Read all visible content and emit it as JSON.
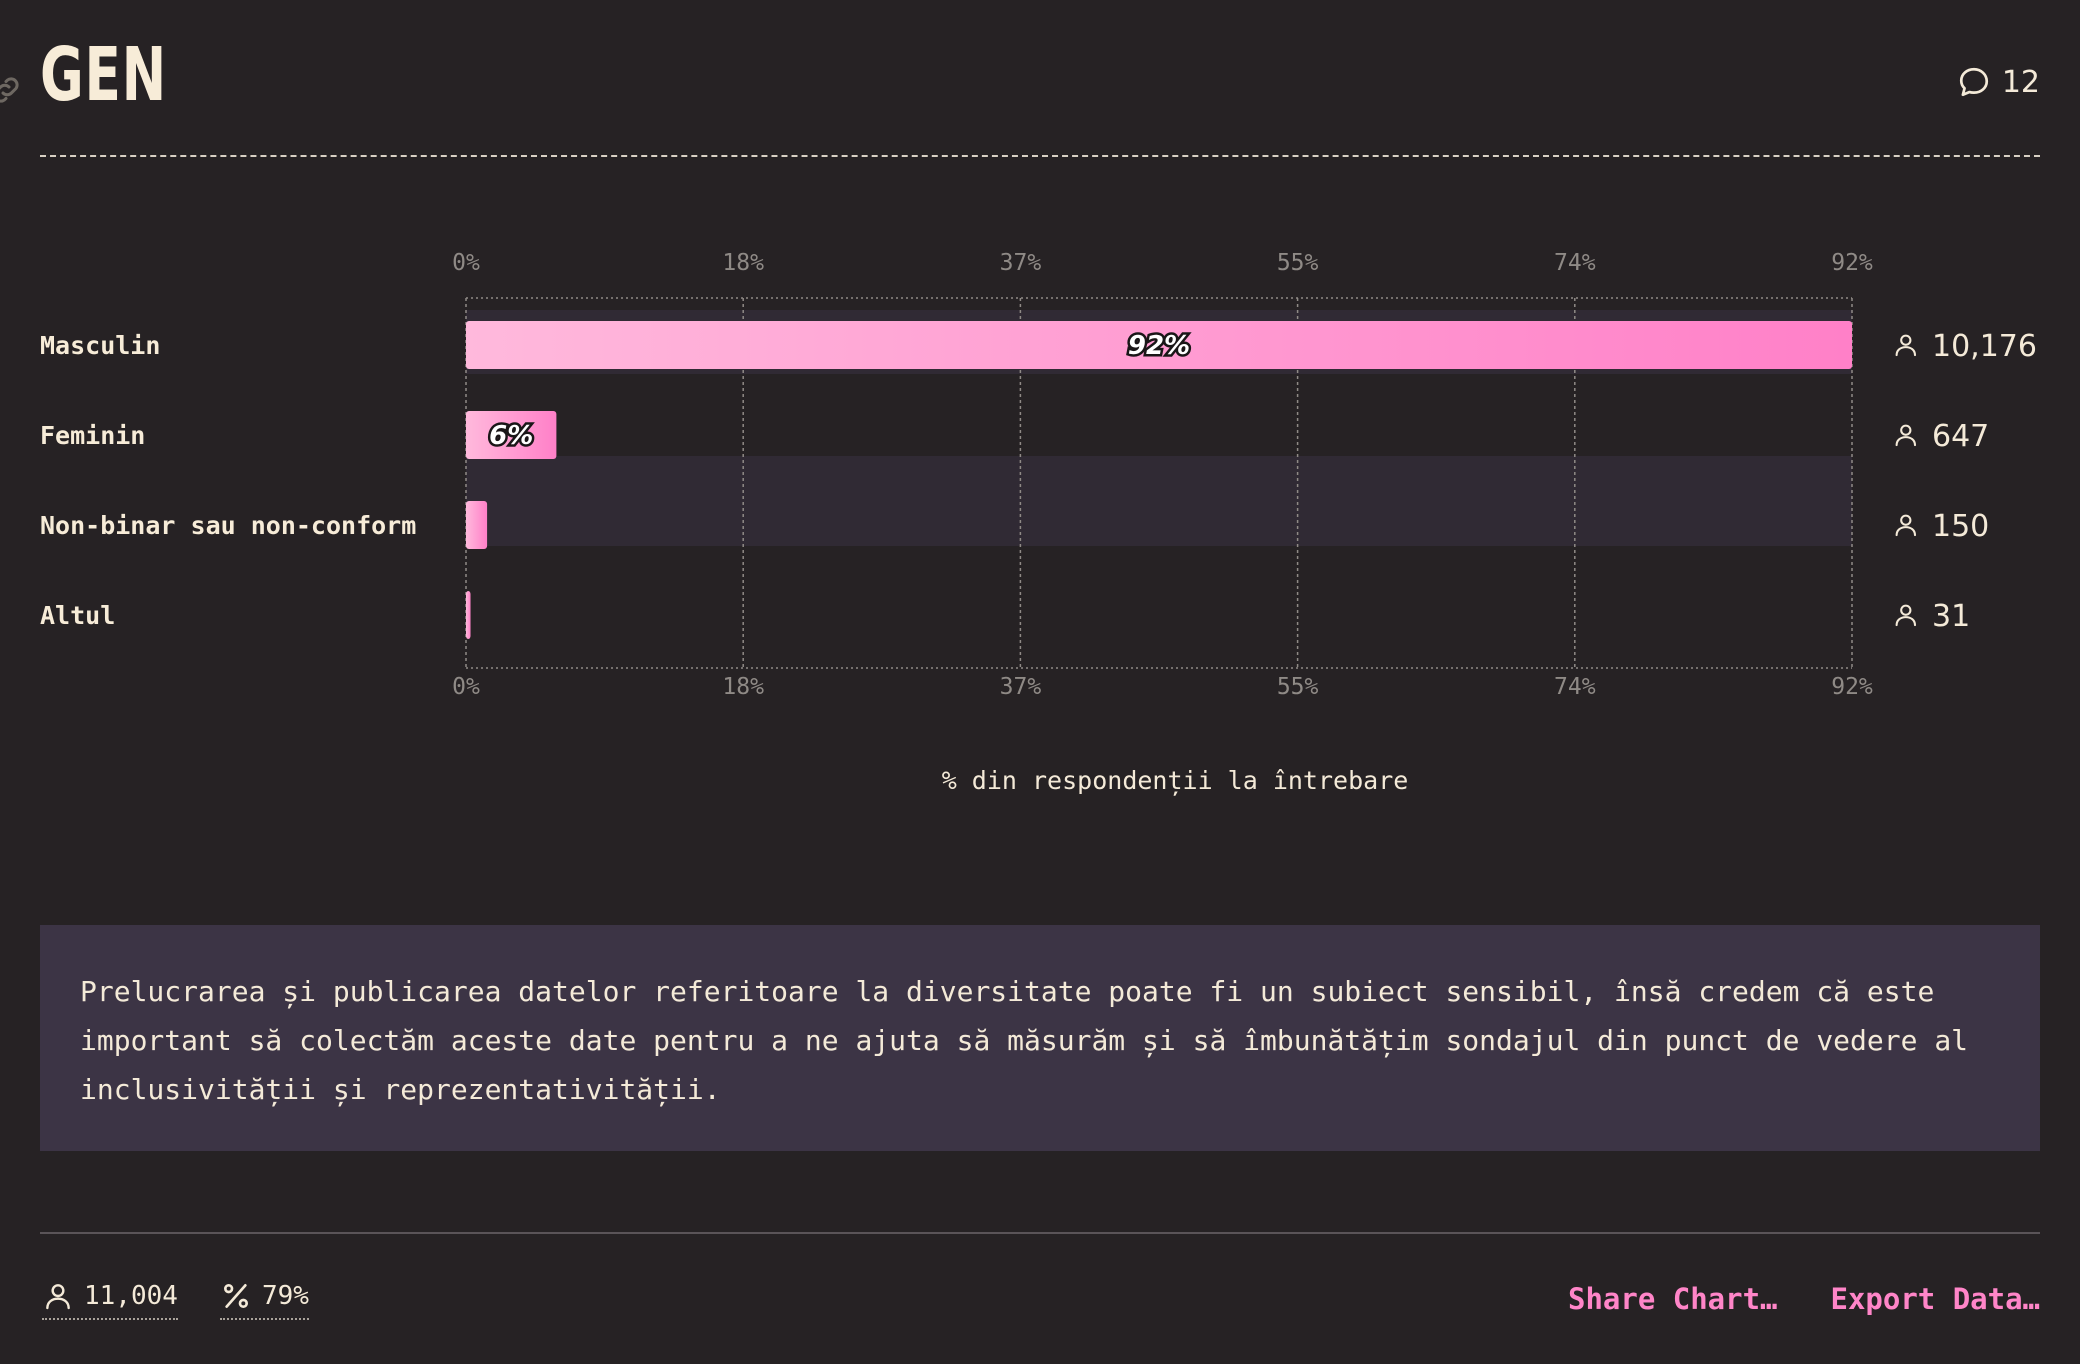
{
  "header": {
    "title": "GEN",
    "comment_count": "12"
  },
  "chart_data": {
    "type": "bar",
    "orientation": "horizontal",
    "categories": [
      "Masculin",
      "Feminin",
      "Non-binar sau non-conform",
      "Altul"
    ],
    "values": [
      92,
      6,
      1.4,
      0.3
    ],
    "value_unit": "%",
    "bar_labels": [
      "92%",
      "6%",
      "",
      ""
    ],
    "counts": [
      "10,176",
      "647",
      "150",
      "31"
    ],
    "tick_labels": [
      "0%",
      "18%",
      "37%",
      "55%",
      "74%",
      "92%"
    ],
    "xlim": [
      0,
      92
    ],
    "xlabel": "% din respondenții la întrebare",
    "grid": true,
    "colors": {
      "bar_start": "#ffb9dc",
      "bar_end": "#ff80c8",
      "highlight_row": "#302a34"
    }
  },
  "note": "Prelucrarea și publicarea datelor referitoare la diversitate poate fi un subiect sensibil, însă credem că este important să colectăm aceste date pentru a ne ajuta să măsurăm și să îmbunătățim sondajul din punct de vedere al inclusivității și reprezentativității.",
  "footer": {
    "respondents": "11,004",
    "percent": "79%",
    "share_label": "Share Chart…",
    "export_label": "Export Data…"
  },
  "icons": {
    "comment": "speech-bubble-icon",
    "person": "person-icon",
    "percent": "percent-icon",
    "link": "link-icon"
  }
}
